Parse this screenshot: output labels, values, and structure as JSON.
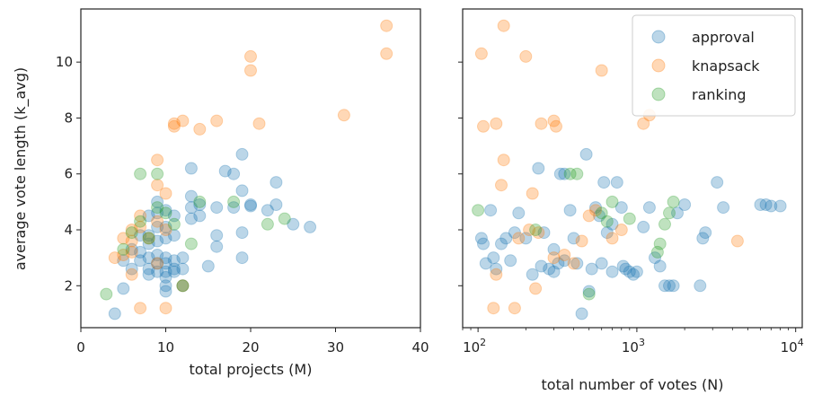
{
  "chart_data": [
    {
      "type": "scatter",
      "xlabel": "total projects (M)",
      "ylabel": "average vote length (k_avg)",
      "xlim": [
        0,
        40
      ],
      "ylim": [
        0.5,
        11.9
      ],
      "xscale": "linear",
      "x_ticks": [
        0,
        10,
        20,
        30,
        40
      ],
      "x_tick_labels": [
        "0",
        "10",
        "20",
        "30",
        "40"
      ],
      "y_ticks": [
        2,
        4,
        6,
        8,
        10
      ],
      "y_tick_labels": [
        "2",
        "4",
        "6",
        "8",
        "10"
      ],
      "grid": false,
      "series": [
        {
          "name": "approval",
          "color": "#1f77b4",
          "points": [
            [
              4,
              1.0
            ],
            [
              5,
              2.9
            ],
            [
              5,
              1.9
            ],
            [
              6,
              3.3
            ],
            [
              6,
              2.6
            ],
            [
              7,
              3.8
            ],
            [
              7,
              3.2
            ],
            [
              7,
              2.9
            ],
            [
              8,
              4.5
            ],
            [
              8,
              3.8
            ],
            [
              8,
              3.5
            ],
            [
              8,
              3.0
            ],
            [
              8,
              2.6
            ],
            [
              8,
              2.4
            ],
            [
              9,
              5.0
            ],
            [
              9,
              4.6
            ],
            [
              9,
              4.1
            ],
            [
              9,
              3.6
            ],
            [
              9,
              3.1
            ],
            [
              9,
              2.8
            ],
            [
              9,
              2.5
            ],
            [
              10,
              4.7
            ],
            [
              10,
              4.1
            ],
            [
              10,
              3.7
            ],
            [
              10,
              3.0
            ],
            [
              10,
              2.8
            ],
            [
              10,
              2.5
            ],
            [
              10,
              2.3
            ],
            [
              10,
              2.0
            ],
            [
              10,
              1.8
            ],
            [
              11,
              4.5
            ],
            [
              11,
              3.8
            ],
            [
              11,
              2.9
            ],
            [
              11,
              2.6
            ],
            [
              11,
              2.5
            ],
            [
              12,
              3.0
            ],
            [
              12,
              2.6
            ],
            [
              12,
              2.0
            ],
            [
              13,
              6.2
            ],
            [
              13,
              5.2
            ],
            [
              13,
              4.8
            ],
            [
              13,
              4.4
            ],
            [
              14,
              4.9
            ],
            [
              14,
              4.5
            ],
            [
              15,
              2.7
            ],
            [
              16,
              4.8
            ],
            [
              16,
              3.8
            ],
            [
              16,
              3.4
            ],
            [
              17,
              6.1
            ],
            [
              18,
              6.0
            ],
            [
              18,
              4.8
            ],
            [
              19,
              6.7
            ],
            [
              19,
              5.4
            ],
            [
              19,
              3.9
            ],
            [
              19,
              3.0
            ],
            [
              20,
              4.9
            ],
            [
              20,
              4.85
            ],
            [
              22,
              4.7
            ],
            [
              23,
              5.7
            ],
            [
              23,
              4.9
            ],
            [
              25,
              4.2
            ],
            [
              27,
              4.1
            ]
          ]
        },
        {
          "name": "knapsack",
          "color": "#ff7f0e",
          "points": [
            [
              4,
              3.0
            ],
            [
              5,
              3.7
            ],
            [
              5,
              3.1
            ],
            [
              6,
              4.0
            ],
            [
              6,
              3.6
            ],
            [
              6,
              3.2
            ],
            [
              6,
              2.4
            ],
            [
              7,
              4.5
            ],
            [
              7,
              4.1
            ],
            [
              7,
              1.2
            ],
            [
              8,
              3.7
            ],
            [
              9,
              6.5
            ],
            [
              9,
              5.6
            ],
            [
              9,
              4.3
            ],
            [
              9,
              2.8
            ],
            [
              10,
              5.3
            ],
            [
              10,
              4.0
            ],
            [
              10,
              1.2
            ],
            [
              11,
              7.8
            ],
            [
              11,
              7.7
            ],
            [
              12,
              7.9
            ],
            [
              12,
              2.0
            ],
            [
              14,
              7.6
            ],
            [
              16,
              7.9
            ],
            [
              20,
              10.2
            ],
            [
              20,
              9.7
            ],
            [
              21,
              7.8
            ],
            [
              31,
              8.1
            ],
            [
              36,
              11.3
            ],
            [
              36,
              10.3
            ]
          ]
        },
        {
          "name": "ranking",
          "color": "#2ca02c",
          "points": [
            [
              3,
              1.7
            ],
            [
              5,
              3.3
            ],
            [
              6,
              3.9
            ],
            [
              7,
              6.0
            ],
            [
              7,
              4.3
            ],
            [
              8,
              3.7
            ],
            [
              9,
              6.0
            ],
            [
              9,
              4.8
            ],
            [
              10,
              4.6
            ],
            [
              11,
              4.2
            ],
            [
              12,
              2.0
            ],
            [
              13,
              3.5
            ],
            [
              14,
              5.0
            ],
            [
              18,
              5.0
            ],
            [
              22,
              4.2
            ],
            [
              24,
              4.4
            ]
          ]
        }
      ]
    },
    {
      "type": "scatter",
      "xlabel": "total number of votes (N)",
      "ylabel": "",
      "xlim": [
        80,
        11000
      ],
      "ylim": [
        0.5,
        11.9
      ],
      "xscale": "log",
      "x_ticks": [
        100,
        1000,
        10000
      ],
      "x_tick_labels": [
        {
          "base": "10",
          "exp": "2"
        },
        {
          "base": "10",
          "exp": "3"
        },
        {
          "base": "10",
          "exp": "4"
        }
      ],
      "y_ticks": [
        2,
        4,
        6,
        8,
        10
      ],
      "grid": false,
      "legend": {
        "position": "top-right",
        "entries": [
          "approval",
          "knapsack",
          "ranking"
        ]
      },
      "series": [
        {
          "name": "approval",
          "color": "#1f77b4",
          "points": [
            [
              105,
              3.7
            ],
            [
              108,
              3.5
            ],
            [
              112,
              2.8
            ],
            [
              120,
              4.7
            ],
            [
              125,
              3.0
            ],
            [
              130,
              2.6
            ],
            [
              140,
              3.5
            ],
            [
              150,
              3.7
            ],
            [
              160,
              2.9
            ],
            [
              170,
              3.9
            ],
            [
              180,
              4.6
            ],
            [
              200,
              3.7
            ],
            [
              220,
              2.4
            ],
            [
              240,
              6.2
            ],
            [
              250,
              2.7
            ],
            [
              260,
              3.9
            ],
            [
              280,
              2.6
            ],
            [
              300,
              3.3
            ],
            [
              300,
              2.5
            ],
            [
              320,
              2.8
            ],
            [
              330,
              6.0
            ],
            [
              350,
              6.0
            ],
            [
              350,
              2.9
            ],
            [
              380,
              4.7
            ],
            [
              400,
              3.7
            ],
            [
              420,
              2.8
            ],
            [
              450,
              1.0
            ],
            [
              480,
              6.7
            ],
            [
              500,
              1.8
            ],
            [
              520,
              2.6
            ],
            [
              550,
              4.8
            ],
            [
              580,
              4.5
            ],
            [
              600,
              2.8
            ],
            [
              620,
              5.7
            ],
            [
              650,
              3.9
            ],
            [
              700,
              2.5
            ],
            [
              700,
              4.2
            ],
            [
              750,
              5.7
            ],
            [
              800,
              4.8
            ],
            [
              820,
              2.7
            ],
            [
              850,
              2.6
            ],
            [
              900,
              2.5
            ],
            [
              950,
              2.4
            ],
            [
              1000,
              2.5
            ],
            [
              1100,
              4.1
            ],
            [
              1200,
              4.8
            ],
            [
              1300,
              3.0
            ],
            [
              1400,
              2.7
            ],
            [
              1500,
              2.0
            ],
            [
              1600,
              2.0
            ],
            [
              1700,
              2.0
            ],
            [
              1800,
              4.6
            ],
            [
              2000,
              4.9
            ],
            [
              2500,
              2.0
            ],
            [
              2600,
              3.7
            ],
            [
              2700,
              3.9
            ],
            [
              3200,
              5.7
            ],
            [
              3500,
              4.8
            ],
            [
              6000,
              4.9
            ],
            [
              6500,
              4.9
            ],
            [
              7000,
              4.85
            ],
            [
              8000,
              4.85
            ]
          ]
        },
        {
          "name": "knapsack",
          "color": "#ff7f0e",
          "points": [
            [
              105,
              10.3
            ],
            [
              108,
              7.7
            ],
            [
              125,
              1.2
            ],
            [
              130,
              2.4
            ],
            [
              130,
              7.8
            ],
            [
              140,
              5.6
            ],
            [
              145,
              11.3
            ],
            [
              145,
              6.5
            ],
            [
              170,
              1.2
            ],
            [
              180,
              3.7
            ],
            [
              200,
              10.2
            ],
            [
              210,
              4.0
            ],
            [
              220,
              5.3
            ],
            [
              230,
              1.9
            ],
            [
              240,
              3.9
            ],
            [
              250,
              7.8
            ],
            [
              300,
              7.9
            ],
            [
              300,
              3.0
            ],
            [
              310,
              7.7
            ],
            [
              350,
              3.1
            ],
            [
              400,
              2.8
            ],
            [
              450,
              3.6
            ],
            [
              500,
              4.5
            ],
            [
              550,
              4.7
            ],
            [
              600,
              9.7
            ],
            [
              700,
              3.7
            ],
            [
              800,
              4.0
            ],
            [
              1100,
              7.8
            ],
            [
              1200,
              8.1
            ],
            [
              4300,
              3.6
            ]
          ]
        },
        {
          "name": "ranking",
          "color": "#2ca02c",
          "points": [
            [
              100,
              4.7
            ],
            [
              230,
              4.0
            ],
            [
              380,
              6.0
            ],
            [
              420,
              6.0
            ],
            [
              500,
              1.7
            ],
            [
              600,
              4.6
            ],
            [
              650,
              4.3
            ],
            [
              700,
              5.0
            ],
            [
              900,
              4.4
            ],
            [
              1350,
              3.2
            ],
            [
              1400,
              3.5
            ],
            [
              1500,
              4.2
            ],
            [
              1600,
              4.6
            ],
            [
              1700,
              5.0
            ]
          ]
        }
      ]
    }
  ]
}
